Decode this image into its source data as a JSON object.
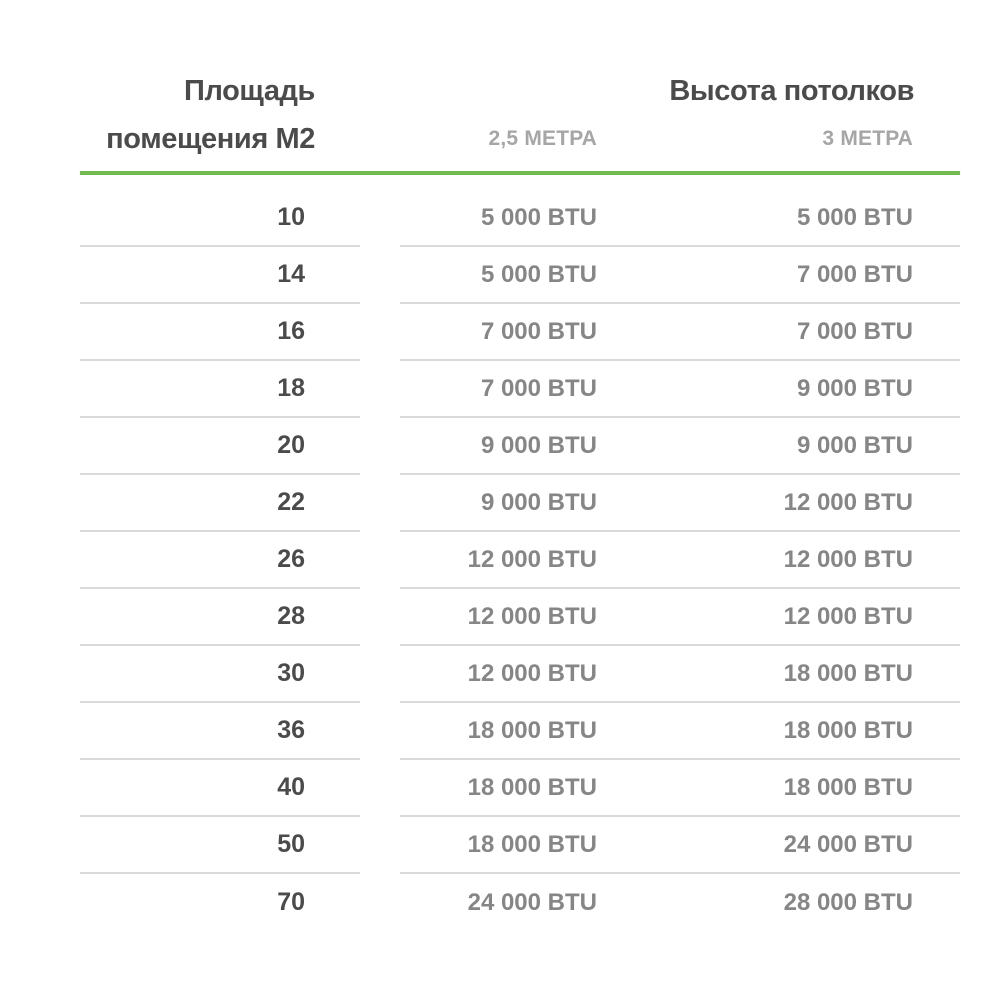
{
  "header": {
    "area_title": "Площадь помещения М2",
    "ceiling_title": "Высота потолков",
    "subcol_25": "2,5 МЕТРА",
    "subcol_3": "3 МЕТРА"
  },
  "rows": [
    {
      "area": "10",
      "btu_25": "5 000 BTU",
      "btu_3": "5 000 BTU"
    },
    {
      "area": "14",
      "btu_25": "5 000 BTU",
      "btu_3": "7 000 BTU"
    },
    {
      "area": "16",
      "btu_25": "7 000 BTU",
      "btu_3": "7 000 BTU"
    },
    {
      "area": "18",
      "btu_25": "7 000 BTU",
      "btu_3": "9 000 BTU"
    },
    {
      "area": "20",
      "btu_25": "9 000 BTU",
      "btu_3": "9 000 BTU"
    },
    {
      "area": "22",
      "btu_25": "9 000 BTU",
      "btu_3": "12 000 BTU"
    },
    {
      "area": "26",
      "btu_25": "12 000 BTU",
      "btu_3": "12 000 BTU"
    },
    {
      "area": "28",
      "btu_25": "12 000 BTU",
      "btu_3": "12 000 BTU"
    },
    {
      "area": "30",
      "btu_25": "12 000 BTU",
      "btu_3": "18 000 BTU"
    },
    {
      "area": "36",
      "btu_25": "18 000 BTU",
      "btu_3": "18 000 BTU"
    },
    {
      "area": "40",
      "btu_25": "18 000 BTU",
      "btu_3": "18 000 BTU"
    },
    {
      "area": "50",
      "btu_25": "18 000 BTU",
      "btu_3": "24 000 BTU"
    },
    {
      "area": "70",
      "btu_25": "24 000 BTU",
      "btu_3": "28 000 BTU"
    }
  ],
  "colors": {
    "accent_green": "#72b94e",
    "dark_text": "#4b4b4b",
    "muted_text": "#868686",
    "subheader_text": "#a6a6a6",
    "divider": "#d9d9d9"
  },
  "chart_data": {
    "type": "table",
    "title": "Высота потолков",
    "columns": [
      "Площадь помещения М2",
      "2,5 МЕТРА",
      "3 МЕТРА"
    ],
    "column_group_label": "Высота потолков",
    "unit": "BTU",
    "rows": [
      [
        10,
        5000,
        5000
      ],
      [
        14,
        5000,
        7000
      ],
      [
        16,
        7000,
        7000
      ],
      [
        18,
        7000,
        9000
      ],
      [
        20,
        9000,
        9000
      ],
      [
        22,
        9000,
        12000
      ],
      [
        26,
        12000,
        12000
      ],
      [
        28,
        12000,
        12000
      ],
      [
        30,
        12000,
        18000
      ],
      [
        36,
        18000,
        18000
      ],
      [
        40,
        18000,
        18000
      ],
      [
        50,
        18000,
        24000
      ],
      [
        70,
        24000,
        28000
      ]
    ]
  }
}
